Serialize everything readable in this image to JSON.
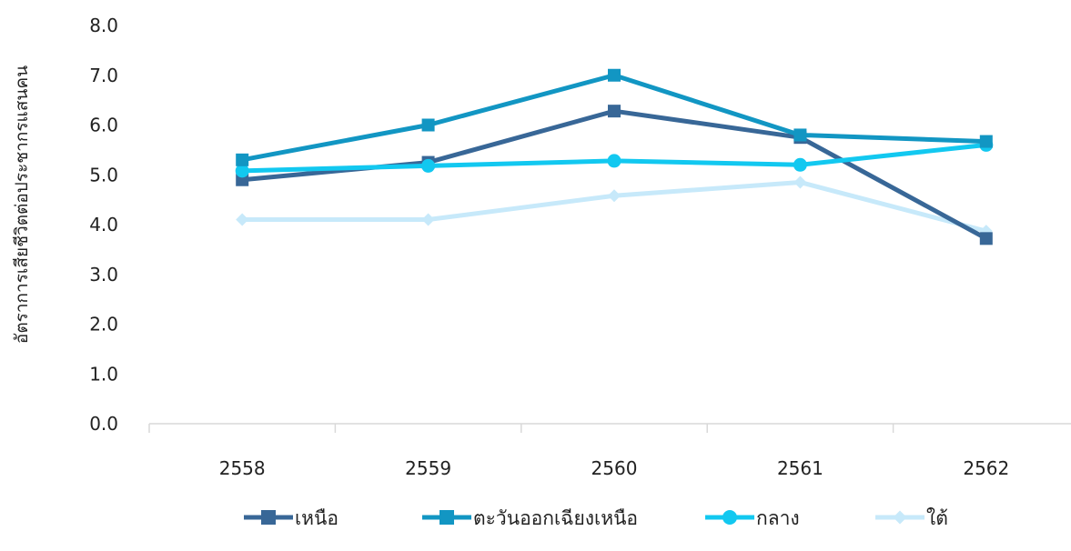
{
  "chart_data": {
    "type": "line",
    "title": "",
    "xlabel": "",
    "ylabel": "อัตราการเสียชีวิตต่อประชากรแสนคน",
    "categories": [
      "2558",
      "2559",
      "2560",
      "2561",
      "2562"
    ],
    "ylim": [
      0,
      8
    ],
    "yticks": [
      "0.0",
      "1.0",
      "2.0",
      "3.0",
      "4.0",
      "5.0",
      "6.0",
      "7.0",
      "8.0"
    ],
    "grid": false,
    "legend_position": "bottom",
    "series": [
      {
        "name": "เหนือ",
        "values": [
          4.9,
          5.25,
          6.28,
          5.75,
          3.72
        ],
        "color": "#386797",
        "marker": "square"
      },
      {
        "name": "ตะวันออกเฉียงเหนือ",
        "values": [
          5.3,
          6.0,
          7.0,
          5.8,
          5.67
        ],
        "color": "#1296C3",
        "marker": "square"
      },
      {
        "name": "กลาง",
        "values": [
          5.08,
          5.18,
          5.28,
          5.2,
          5.6
        ],
        "color": "#12C8F0",
        "marker": "circle"
      },
      {
        "name": "ใต้",
        "values": [
          4.1,
          4.1,
          4.58,
          4.85,
          3.87
        ],
        "color": "#C7E9FA",
        "marker": "diamond"
      }
    ]
  }
}
